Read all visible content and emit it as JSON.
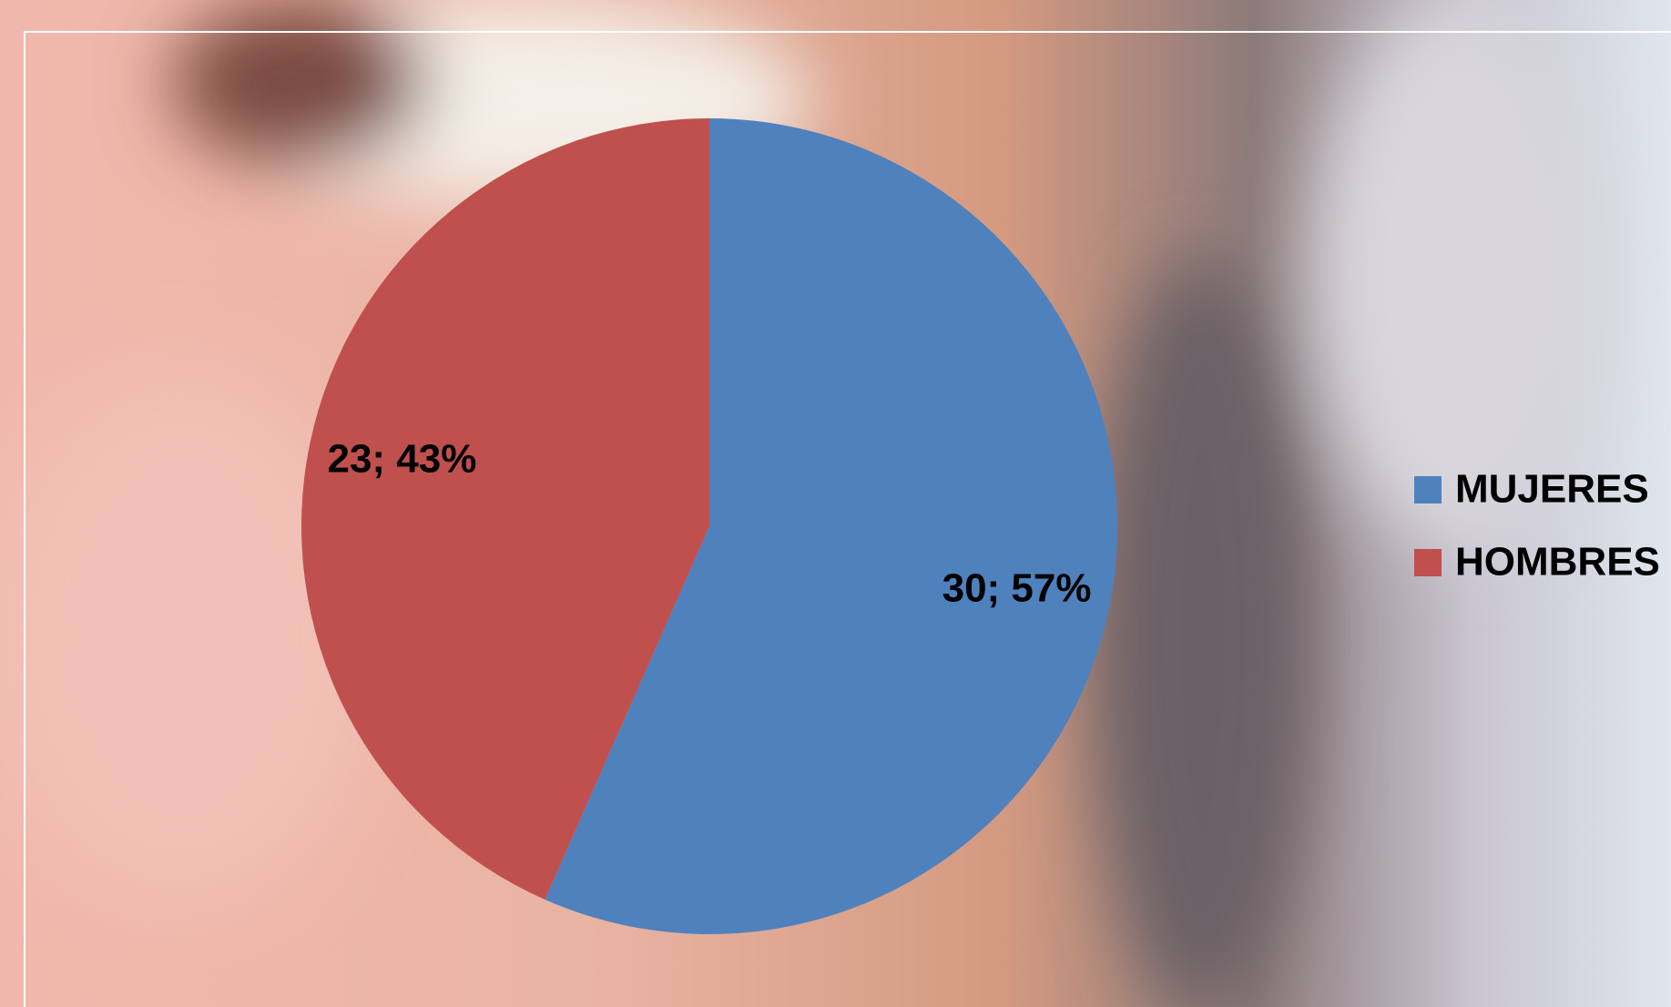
{
  "chart_data": {
    "type": "pie",
    "categories": [
      "MUJERES",
      "HOMBRES"
    ],
    "values": [
      30,
      23
    ],
    "value_labels": [
      "30; 57%",
      "23; 43%"
    ],
    "colors": [
      "#4f81bd",
      "#c0504d"
    ],
    "legend": "right"
  }
}
